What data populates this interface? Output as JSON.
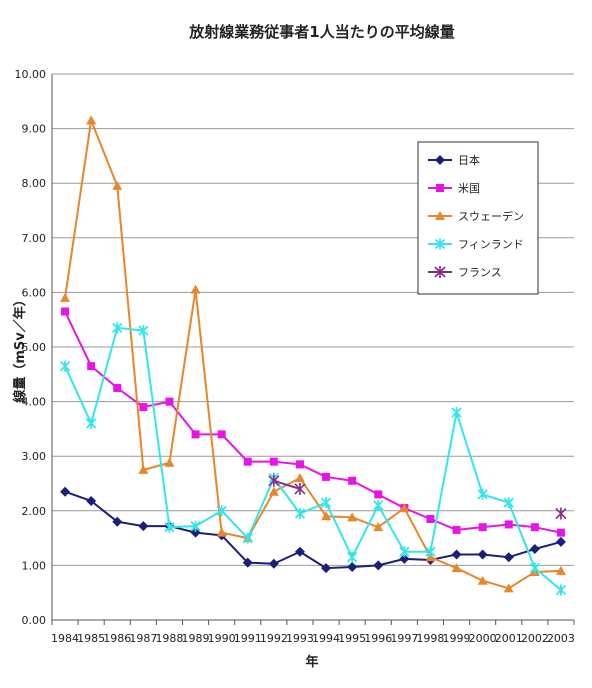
{
  "chart_data": {
    "type": "line",
    "title": "放射線業務従事者1人当たりの平均線量",
    "xlabel": "年",
    "ylabel": "線量（mSv／年）",
    "ylim": [
      0,
      10
    ],
    "yticks": [
      "0.00",
      "1.00",
      "2.00",
      "3.00",
      "4.00",
      "5.00",
      "6.00",
      "7.00",
      "8.00",
      "9.00",
      "10.00"
    ],
    "grid": "horizontal",
    "legend_position": "top-right",
    "categories": [
      "1984",
      "1985",
      "1986",
      "1987",
      "1988",
      "1989",
      "1990",
      "1991",
      "1992",
      "1993",
      "1994",
      "1995",
      "1996",
      "1997",
      "1998",
      "1999",
      "2000",
      "2001",
      "2002",
      "2003"
    ],
    "series": [
      {
        "name": "日本",
        "color": "#1a1f7a",
        "marker": "diamond",
        "values": [
          2.35,
          2.18,
          1.8,
          1.72,
          1.72,
          1.6,
          1.55,
          1.05,
          1.03,
          1.25,
          0.95,
          0.97,
          1.0,
          1.12,
          1.1,
          1.2,
          1.2,
          1.15,
          1.3,
          1.43
        ]
      },
      {
        "name": "米国",
        "color": "#e614e6",
        "marker": "square",
        "values": [
          5.65,
          4.65,
          4.25,
          3.9,
          4.0,
          3.4,
          3.4,
          2.9,
          2.9,
          2.85,
          2.62,
          2.55,
          2.3,
          2.05,
          1.85,
          1.65,
          1.7,
          1.75,
          1.7,
          1.6
        ]
      },
      {
        "name": "スウェーデン",
        "color": "#e8862a",
        "marker": "triangle",
        "values": [
          5.9,
          9.15,
          7.95,
          2.75,
          2.88,
          6.05,
          1.6,
          1.5,
          2.35,
          2.6,
          1.9,
          1.88,
          1.7,
          2.05,
          1.15,
          0.95,
          0.72,
          0.58,
          0.88,
          0.9
        ]
      },
      {
        "name": "フィンランド",
        "color": "#33e6ea",
        "marker": "star",
        "values": [
          4.65,
          3.6,
          5.35,
          5.3,
          1.7,
          1.72,
          2.0,
          1.5,
          2.6,
          1.95,
          2.15,
          1.15,
          2.1,
          1.25,
          1.25,
          3.8,
          2.3,
          2.15,
          0.95,
          0.55
        ]
      },
      {
        "name": "フランス",
        "color": "#8a2a8a",
        "marker": "asterisk",
        "values": [
          null,
          null,
          null,
          null,
          null,
          null,
          null,
          null,
          2.55,
          2.4,
          null,
          null,
          null,
          null,
          null,
          null,
          null,
          null,
          null,
          1.95
        ]
      }
    ]
  }
}
